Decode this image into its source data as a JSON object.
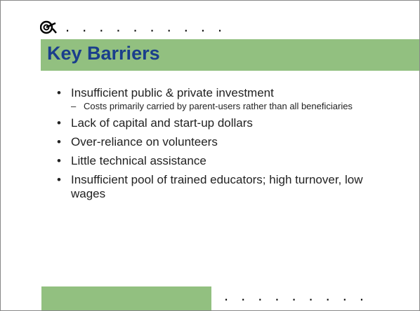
{
  "title": "Key Barriers",
  "bullets": [
    {
      "text": "Insufficient public & private investment",
      "sub": [
        "Costs primarily carried by parent-users rather than all beneficiaries"
      ]
    },
    {
      "text": "Lack of capital and start-up dollars"
    },
    {
      "text": "Over-reliance on volunteers"
    },
    {
      "text": "Little technical assistance"
    },
    {
      "text": "Insufficient pool of trained educators; high turnover, low wages"
    }
  ]
}
